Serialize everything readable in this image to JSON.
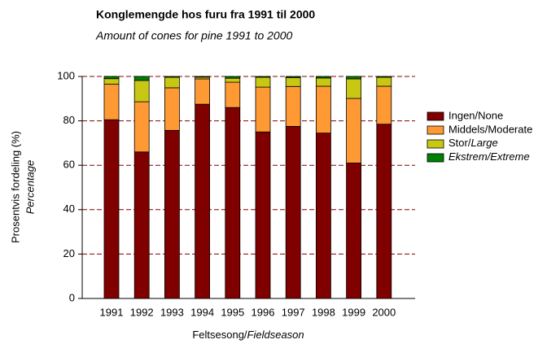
{
  "chart_data": {
    "type": "stacked_bar",
    "title": "Konglemengde hos furu fra 1991 til 2000",
    "subtitle": "Amount of cones for pine 1991 to 2000",
    "y_label": "Prosentvis fordeling (%)",
    "y_label_sub": "Percentage",
    "x_label": "Feltsesong/Fieldseason",
    "categories": [
      "1991",
      "1992",
      "1993",
      "1994",
      "1995",
      "1996",
      "1997",
      "1998",
      "1999",
      "2000"
    ],
    "series": [
      {
        "name": "Ingen/None",
        "color": "#800000",
        "values": [
          80.5,
          66,
          75.7,
          87.5,
          86,
          75,
          77.5,
          74.5,
          61,
          78.5
        ]
      },
      {
        "name": "Middels/Moderate",
        "color": "#ff9933",
        "values": [
          16,
          22.6,
          19.2,
          11.4,
          11.4,
          20.2,
          18,
          21.1,
          29.1,
          17.1
        ]
      },
      {
        "name": "Stor/Large",
        "color": "#c8c814",
        "values": [
          2.5,
          9.6,
          4.7,
          0.8,
          1.8,
          4.4,
          4,
          3.7,
          8.8,
          4
        ]
      },
      {
        "name": "Ekstrem/Extreme",
        "color": "#008000",
        "values": [
          1,
          1.8,
          0.4,
          0.3,
          0.8,
          0.4,
          0.5,
          0.7,
          1.1,
          0.4
        ]
      }
    ],
    "ylim": [
      0,
      100
    ],
    "yticks": [
      0,
      20,
      40,
      60,
      80,
      100
    ],
    "grid": true,
    "grid_color": "#800000",
    "legend": "right"
  }
}
